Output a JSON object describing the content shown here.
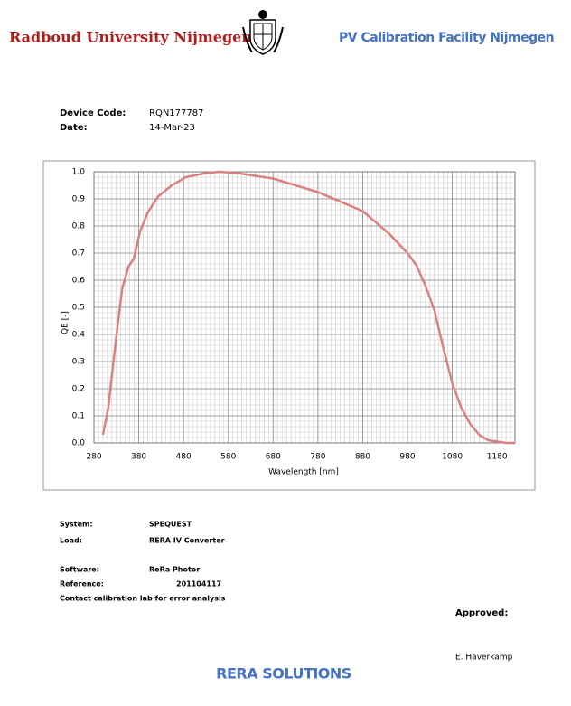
{
  "header": {
    "university": "Radboud University Nijmegen",
    "facility": "PV Calibration Facility Nijmegen"
  },
  "device": [
    {
      "label": "Device Code:",
      "value": "RQN177787"
    },
    {
      "label": "Date:",
      "value": "14-Mar-23"
    }
  ],
  "chart_data": {
    "type": "line",
    "xlabel": "Wavelength [nm]",
    "ylabel": "QE [-]",
    "x": [
      300,
      312,
      329,
      343,
      357,
      369,
      383,
      400,
      424,
      454,
      485,
      530,
      560,
      600,
      680,
      780,
      880,
      940,
      980,
      1000,
      1020,
      1040,
      1060,
      1080,
      1100,
      1120,
      1140,
      1160,
      1180,
      1200,
      1220
    ],
    "series": [
      {
        "name": "QE",
        "color": "#d98080",
        "values": [
          0.03,
          0.13,
          0.38,
          0.57,
          0.65,
          0.68,
          0.78,
          0.85,
          0.91,
          0.95,
          0.98,
          0.995,
          1.0,
          0.995,
          0.975,
          0.925,
          0.855,
          0.77,
          0.7,
          0.655,
          0.58,
          0.49,
          0.35,
          0.22,
          0.13,
          0.07,
          0.03,
          0.01,
          0.005,
          0.0,
          0.0
        ]
      }
    ],
    "xlim": [
      280,
      1220
    ],
    "xticks": [
      280,
      380,
      480,
      580,
      680,
      780,
      880,
      980,
      1080,
      1180
    ],
    "ylim": [
      0,
      1
    ],
    "yticks": [
      {
        "value": 0,
        "label": "0.0"
      },
      0.1,
      0.2,
      0.3,
      0.4,
      0.5,
      0.6,
      0.7,
      0.8,
      0.9,
      {
        "value": 1,
        "label": "1.0"
      }
    ],
    "grid": true
  },
  "info": [
    {
      "label": "System:",
      "value": "SPEQUEST"
    },
    {
      "label": "Load:",
      "value": "RERA IV Converter"
    },
    {
      "label": "Software:",
      "value": "ReRa Photor"
    },
    {
      "label": "Reference:",
      "value": "201104117"
    }
  ],
  "note": "Contact calibration lab for error analysis",
  "approved": "Approved:",
  "signer": "E. Haverkamp",
  "footer": "RERA SOLUTIONS"
}
